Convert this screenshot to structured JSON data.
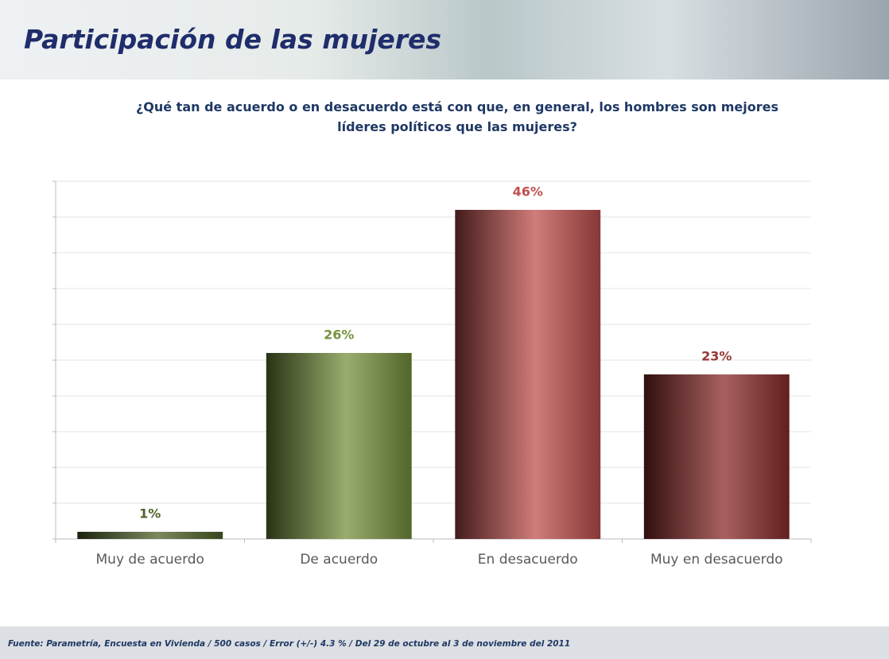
{
  "chart_data": {
    "type": "bar",
    "title": "Participación de las mujeres",
    "subtitle": "¿Qué tan de acuerdo o en desacuerdo está con que, en general, los hombres son mejores líderes políticos que las mujeres?",
    "source": "Fuente: Parametría, Encuesta en Vivienda / 500 casos / Error (+/-) 4.3 % / Del 29 de octubre al 3 de noviembre del 2011",
    "categories": [
      "Muy de acuerdo",
      "De acuerdo",
      "En desacuerdo",
      "Muy en desacuerdo"
    ],
    "values": [
      1,
      26,
      46,
      23
    ],
    "value_labels": [
      "1%",
      "26%",
      "46%",
      "23%"
    ],
    "colors": [
      "#4f6228",
      "#76923c",
      "#c0504d",
      "#8b2c2a"
    ],
    "label_colors": [
      "#4f6228",
      "#76923c",
      "#c0504d",
      "#953735"
    ],
    "ylim": [
      0,
      50
    ],
    "yticks": [
      0,
      5,
      10,
      15,
      20,
      25,
      30,
      35,
      40,
      45,
      50
    ],
    "grid": true
  }
}
